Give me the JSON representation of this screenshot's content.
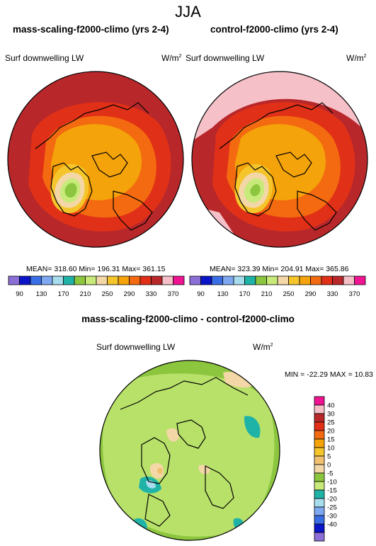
{
  "figure_title": "JJA",
  "left_panel": {
    "title": "mass-scaling-f2000-climo (yrs 2-4)",
    "variable": "Surf downwelling LW",
    "units": "W/m",
    "units_exp": "2",
    "stats": "MEAN= 318.60  Min= 196.31  Max= 361.15"
  },
  "right_panel": {
    "title": "control-f2000-climo (yrs 2-4)",
    "variable": "Surf downwelling LW",
    "units": "W/m",
    "units_exp": "2",
    "stats": "MEAN= 323.39  Min= 204.91  Max= 365.86"
  },
  "diff_panel": {
    "title": "mass-scaling-f2000-climo - control-f2000-climo",
    "variable": "Surf downwelling LW",
    "units": "W/m",
    "units_exp": "2",
    "minmax": "MIN = -22.29 MAX =  10.83"
  },
  "abs_colorbar": {
    "colors": [
      "#8c6fd6",
      "#0a14c8",
      "#3a6ee6",
      "#7ea8f0",
      "#a8dcec",
      "#1fb3a8",
      "#8cc63e",
      "#c7ea7a",
      "#f3d7a6",
      "#f5c52c",
      "#f5a30a",
      "#f36a10",
      "#e03018",
      "#b8282a",
      "#f6c0c8",
      "#f01493"
    ],
    "ticks": [
      "90",
      "130",
      "170",
      "210",
      "250",
      "290",
      "330",
      "370"
    ]
  },
  "diff_colorbar": {
    "colors": [
      "#8c6fd6",
      "#0a14c8",
      "#3a6ee6",
      "#7ea8f0",
      "#a8dcec",
      "#1fb3a8",
      "#c7ea7a",
      "#8cc63e",
      "#f3d7a6",
      "#f0c070",
      "#f5c52c",
      "#f5a30a",
      "#f36a10",
      "#e03018",
      "#b8282a",
      "#f6c0c8",
      "#f01493"
    ],
    "ticks": [
      "40",
      "30",
      "25",
      "20",
      "15",
      "10",
      "5",
      "0",
      "-5",
      "-10",
      "-15",
      "-20",
      "-25",
      "-30",
      "-40"
    ]
  }
}
